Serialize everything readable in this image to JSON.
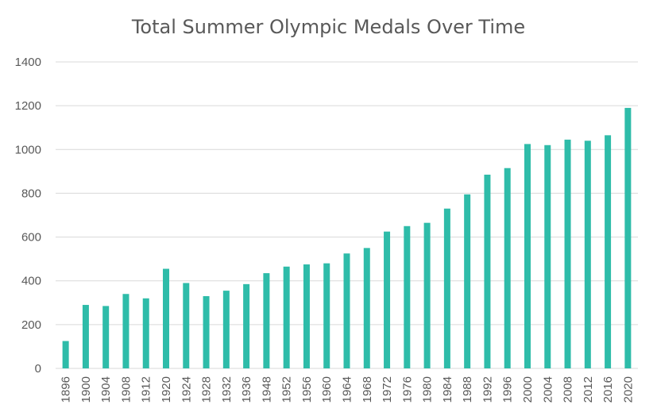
{
  "chart_data": {
    "type": "bar",
    "title": "Total Summer Olympic Medals Over Time",
    "xlabel": "",
    "ylabel": "",
    "ylim": [
      0,
      1400
    ],
    "yticks": [
      0,
      200,
      400,
      600,
      800,
      1000,
      1200,
      1400
    ],
    "grid": true,
    "categories": [
      "1896",
      "1900",
      "1904",
      "1908",
      "1912",
      "1920",
      "1924",
      "1928",
      "1932",
      "1936",
      "1948",
      "1952",
      "1956",
      "1960",
      "1964",
      "1968",
      "1972",
      "1976",
      "1980",
      "1984",
      "1988",
      "1992",
      "1996",
      "2000",
      "2004",
      "2008",
      "2012",
      "2016",
      "2020"
    ],
    "values": [
      125,
      290,
      285,
      340,
      320,
      455,
      390,
      330,
      355,
      385,
      435,
      465,
      475,
      480,
      525,
      550,
      625,
      650,
      665,
      730,
      795,
      885,
      915,
      1025,
      1020,
      1045,
      1040,
      1065,
      1190
    ],
    "colors": {
      "bar": "#2EBCA9",
      "grid": "#D9D9D9",
      "text": "#595959"
    }
  }
}
